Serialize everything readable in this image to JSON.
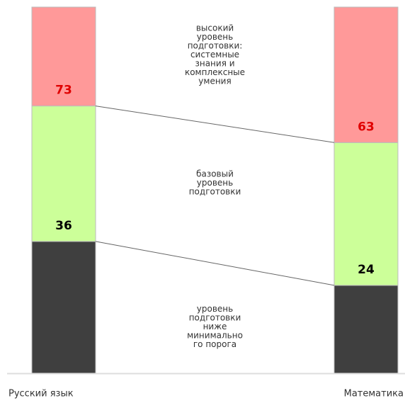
{
  "chart_data": {
    "type": "threshold-bar",
    "categories": [
      "Русский язык",
      "Математика"
    ],
    "ylim": [
      0,
      100
    ],
    "zones": [
      {
        "name": [
          "уровень",
          "подготовки",
          "ниже",
          "минимально",
          "го порога"
        ],
        "color": "#3f3f3f"
      },
      {
        "name": [
          "базовый",
          "уровень",
          "подготовки"
        ],
        "color": "#ccff99",
        "label_color": "#000000",
        "start": [
          36,
          24
        ]
      },
      {
        "name": [
          "высокий",
          "уровень",
          "подготовки:",
          "системные",
          "знания и",
          "комплексные",
          "умения"
        ],
        "color": "#ff9999",
        "label_color": "#e00000",
        "start": [
          73,
          63
        ]
      }
    ]
  }
}
